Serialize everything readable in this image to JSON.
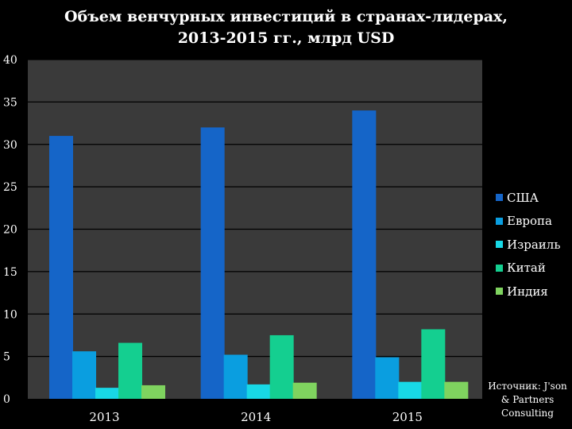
{
  "chart_data": {
    "type": "bar",
    "title_lines": [
      "Объем венчурных инвестиций в странах-лидерах,",
      "2013-2015 гг., млрд USD"
    ],
    "categories": [
      "2013",
      "2014",
      "2015"
    ],
    "series": [
      {
        "name": "США",
        "color": "#1565c8",
        "values": [
          31,
          32,
          34
        ]
      },
      {
        "name": "Европа",
        "color": "#0a9ee0",
        "values": [
          5.6,
          5.2,
          4.9
        ]
      },
      {
        "name": "Израиль",
        "color": "#18d8e6",
        "values": [
          1.3,
          1.7,
          2.0
        ]
      },
      {
        "name": "Китай",
        "color": "#14cf90",
        "values": [
          6.6,
          7.5,
          8.2
        ]
      },
      {
        "name": "Индия",
        "color": "#7fd35f",
        "values": [
          1.6,
          1.9,
          2.0
        ]
      }
    ],
    "yticks": [
      0,
      5,
      10,
      15,
      20,
      25,
      30,
      35,
      40
    ],
    "ylim": [
      0,
      40
    ],
    "grid": true,
    "legend": "right",
    "plot_background": "#3a3a3a",
    "gridline_color": "#000000"
  },
  "source_note": "Источник: J'son & Partners Consulting"
}
